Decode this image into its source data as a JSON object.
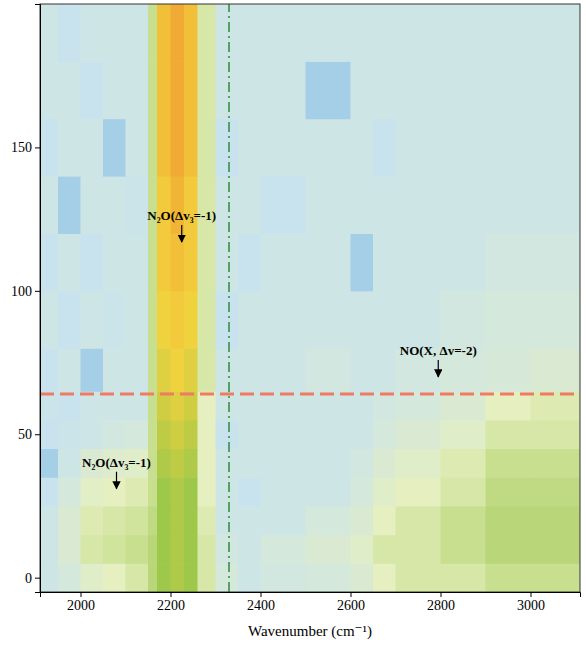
{
  "chart_data": {
    "type": "heatmap",
    "x_label": "Wavenumber (cm⁻¹)",
    "xlim": [
      1910,
      3110
    ],
    "ylim": [
      -5,
      200
    ],
    "xticks": [
      2000,
      2200,
      2400,
      2600,
      2800,
      3000
    ],
    "yticks": [
      0,
      50,
      100,
      150
    ],
    "zlim": [
      -0.2,
      1
    ],
    "x_edges": [
      1910,
      1950,
      2000,
      2050,
      2100,
      2150,
      2170,
      2200,
      2230,
      2260,
      2300,
      2350,
      2400,
      2500,
      2600,
      2650,
      2700,
      2800,
      2900,
      3000,
      3110
    ],
    "y_edges": [
      -5,
      5,
      15,
      25,
      35,
      45,
      55,
      65,
      80,
      100,
      120,
      140,
      160,
      180,
      200
    ],
    "z": [
      [
        0.05,
        0.1,
        0.2,
        0.25,
        0.3,
        0.4,
        0.5,
        0.55,
        0.5,
        0.3,
        0.1,
        0.05,
        0.08,
        0.1,
        0.15,
        0.25,
        0.3,
        0.3,
        0.35,
        0.35
      ],
      [
        0.05,
        0.15,
        0.3,
        0.32,
        0.35,
        0.4,
        0.5,
        0.55,
        0.5,
        0.3,
        0.08,
        0.05,
        0.1,
        0.15,
        0.2,
        0.3,
        0.3,
        0.35,
        0.4,
        0.4
      ],
      [
        0.05,
        0.15,
        0.28,
        0.3,
        0.32,
        0.38,
        0.5,
        0.55,
        0.5,
        0.28,
        0.05,
        0.05,
        0.05,
        0.1,
        0.15,
        0.25,
        0.3,
        0.35,
        0.4,
        0.4
      ],
      [
        0,
        0.1,
        0.22,
        0.25,
        0.28,
        0.35,
        0.5,
        0.55,
        0.5,
        0.25,
        0.05,
        0,
        0.05,
        0.05,
        0.1,
        0.2,
        0.25,
        0.3,
        0.38,
        0.38
      ],
      [
        -0.05,
        0.05,
        0.15,
        0.18,
        0.2,
        0.35,
        0.55,
        0.6,
        0.55,
        0.25,
        0.05,
        0.05,
        0.05,
        0.05,
        0.08,
        0.15,
        0.2,
        0.28,
        0.35,
        0.35
      ],
      [
        0,
        0.02,
        0.05,
        0.08,
        0.1,
        0.35,
        0.6,
        0.65,
        0.6,
        0.25,
        0,
        0.05,
        0.05,
        0.05,
        0.05,
        0.1,
        0.15,
        0.2,
        0.3,
        0.3
      ],
      [
        0.02,
        0,
        0.05,
        0.05,
        0.05,
        0.35,
        0.65,
        0.7,
        0.65,
        0.25,
        0.05,
        0.05,
        0.05,
        0.05,
        0.05,
        0.08,
        0.1,
        0.15,
        0.25,
        0.28
      ],
      [
        0,
        0.05,
        -0.05,
        0.05,
        0.05,
        0.35,
        0.7,
        0.75,
        0.7,
        0.3,
        0.05,
        0.05,
        0.05,
        0.08,
        0.05,
        0.05,
        0.08,
        0.1,
        0.12,
        0.15
      ],
      [
        0.05,
        0,
        0.05,
        0.02,
        0.05,
        0.35,
        0.75,
        0.8,
        0.75,
        0.3,
        0,
        0.05,
        0.05,
        0.05,
        0.05,
        0.05,
        0.05,
        0.08,
        0.1,
        0.1
      ],
      [
        0,
        0.05,
        0,
        0.05,
        0.05,
        0.35,
        0.8,
        0.85,
        0.8,
        0.3,
        0.05,
        0,
        0.05,
        0.05,
        -0.05,
        0.05,
        0.05,
        0.05,
        0.08,
        0.08
      ],
      [
        0.05,
        -0.05,
        0.05,
        0.05,
        0.02,
        0.35,
        0.8,
        0.9,
        0.8,
        0.3,
        0.05,
        0.05,
        0,
        0.05,
        0.05,
        0.05,
        0.05,
        0.05,
        0.05,
        0.05
      ],
      [
        0,
        0.05,
        0.05,
        -0.05,
        0.05,
        0.35,
        0.85,
        0.95,
        0.85,
        0.3,
        0,
        0.05,
        0.05,
        0.05,
        0.05,
        0,
        0.05,
        0.05,
        0.05,
        0.05
      ],
      [
        0.05,
        0.05,
        0,
        0.05,
        0.05,
        0.35,
        0.85,
        0.95,
        0.85,
        0.3,
        0.05,
        0.05,
        0.05,
        -0.05,
        0.05,
        0.05,
        0.05,
        0.05,
        0.05,
        0.05
      ],
      [
        0.05,
        0,
        0.05,
        0.05,
        0.05,
        0.35,
        0.85,
        0.95,
        0.85,
        0.3,
        0.05,
        0.05,
        0.05,
        0.05,
        0.05,
        0.05,
        0.05,
        0.05,
        0.05,
        0.05
      ]
    ],
    "reference_lines": [
      {
        "axis": "x",
        "value": 2330,
        "color": "#2e8b3a",
        "line_style": "dashdot"
      },
      {
        "axis": "y",
        "value": 64,
        "color": "#f07a62",
        "line_style": "dashed"
      }
    ],
    "annotations": [
      {
        "text": "N₂O(Δv₃=-1)",
        "x": 2225,
        "y": 117
      },
      {
        "text": "N₂O(Δv₃=-1)",
        "x": 2080,
        "y": 31
      },
      {
        "text": "NO(X, Δv=-2)",
        "x": 2795,
        "y": 70
      }
    ]
  }
}
